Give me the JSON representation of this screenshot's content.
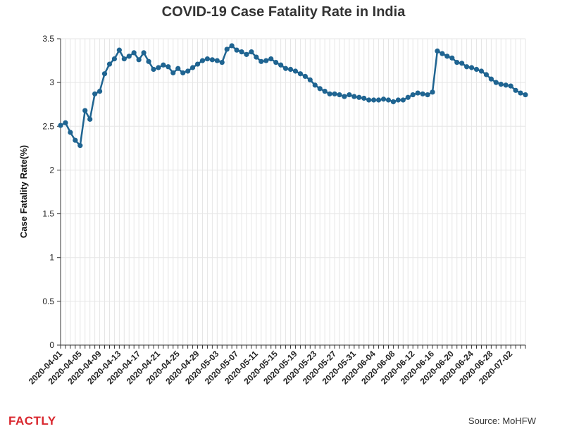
{
  "chart_data": {
    "type": "line",
    "title": "COVID-19 Case Fatality Rate in India",
    "xlabel": "",
    "ylabel": "Case Fatality Rate(%)",
    "ylim": [
      0,
      3.5
    ],
    "yticks": [
      "0",
      "0.5",
      "1",
      "1.5",
      "2",
      "2.5",
      "3",
      "3.5"
    ],
    "x_start": "2020-04-01",
    "x_end": "2020-07-05",
    "x_tick_labels": [
      "2020-04-01",
      "2020-04-05",
      "2020-04-09",
      "2020-04-13",
      "2020-04-17",
      "2020-04-21",
      "2020-04-25",
      "2020-04-29",
      "2020-05-03",
      "2020-05-07",
      "2020-05-11",
      "2020-05-15",
      "2020-05-19",
      "2020-05-23",
      "2020-05-27",
      "2020-05-31",
      "2020-06-04",
      "2020-06-08",
      "2020-06-12",
      "2020-06-16",
      "2020-06-20",
      "2020-06-24",
      "2020-06-28",
      "2020-07-02"
    ],
    "grid": true,
    "color": "#1f6491",
    "series": [
      {
        "name": "",
        "values": [
          2.51,
          2.54,
          2.43,
          2.34,
          2.28,
          2.68,
          2.58,
          2.87,
          2.9,
          3.1,
          3.21,
          3.27,
          3.37,
          3.27,
          3.3,
          3.34,
          3.26,
          3.34,
          3.24,
          3.15,
          3.17,
          3.2,
          3.18,
          3.11,
          3.16,
          3.11,
          3.13,
          3.17,
          3.21,
          3.25,
          3.27,
          3.26,
          3.25,
          3.23,
          3.38,
          3.42,
          3.37,
          3.35,
          3.32,
          3.35,
          3.29,
          3.24,
          3.25,
          3.27,
          3.23,
          3.2,
          3.16,
          3.15,
          3.13,
          3.1,
          3.07,
          3.03,
          2.97,
          2.93,
          2.9,
          2.87,
          2.87,
          2.86,
          2.84,
          2.86,
          2.84,
          2.83,
          2.82,
          2.8,
          2.8,
          2.8,
          2.81,
          2.8,
          2.78,
          2.8,
          2.8,
          2.83,
          2.86,
          2.88,
          2.87,
          2.86,
          2.89,
          3.36,
          3.33,
          3.3,
          3.28,
          3.23,
          3.22,
          3.18,
          3.17,
          3.15,
          3.13,
          3.09,
          3.04,
          3.0,
          2.98,
          2.97,
          2.96,
          2.91,
          2.88,
          2.86
        ]
      }
    ]
  },
  "brand": {
    "logo_text": "FACTLY"
  },
  "source": "Source: MoHFW"
}
